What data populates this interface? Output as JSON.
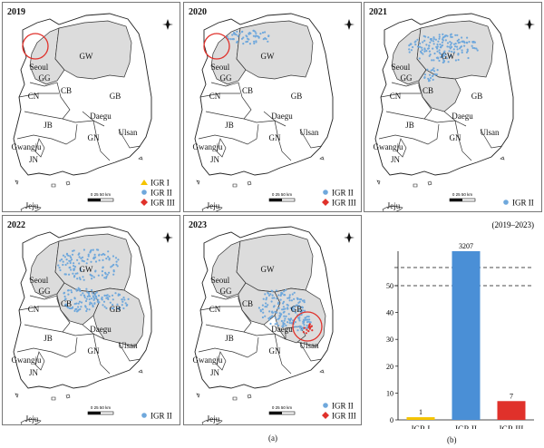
{
  "figure_label_a": "(a)",
  "figure_label_b": "(b)",
  "province_labels": [
    "Seoul",
    "GG",
    "GW",
    "CN",
    "CB",
    "GB",
    "JB",
    "Daegu",
    "Ulsan",
    "GN",
    "Gwangju",
    "JN",
    "Jeju"
  ],
  "scale_label": "0 25 50 km",
  "legend_labels": {
    "igr1": "IGR I",
    "igr2": "IGR II",
    "igr3": "IGR III"
  },
  "legend_colors": {
    "igr1": "#f5c400",
    "igr2": "#6fa8dc",
    "igr3": "#e0312b",
    "shaded": "#dcdcdc"
  },
  "maps": [
    {
      "year": "2019",
      "legend": [
        "igr1",
        "igr2",
        "igr3"
      ],
      "highlighted_provinces": [
        "GG",
        "GW"
      ]
    },
    {
      "year": "2020",
      "legend": [
        "igr2",
        "igr3"
      ],
      "highlighted_provinces": [
        "GG",
        "GW"
      ]
    },
    {
      "year": "2021",
      "legend": [
        "igr2"
      ],
      "highlighted_provinces": [
        "GG",
        "GW",
        "CB"
      ]
    },
    {
      "year": "2022",
      "legend": [
        "igr2"
      ],
      "highlighted_provinces": [
        "GG",
        "GW",
        "CB",
        "GB"
      ]
    },
    {
      "year": "2023",
      "legend": [
        "igr2",
        "igr3"
      ],
      "highlighted_provinces": [
        "GG",
        "GW",
        "CB",
        "GB",
        "Daegu"
      ]
    }
  ],
  "chart_data": {
    "type": "bar",
    "title": "(2019–2023)",
    "categories": [
      "IGR I",
      "IGR II",
      "IGR III"
    ],
    "values": [
      1,
      3207,
      7
    ],
    "colors": [
      "#f5c400",
      "#4a8fd6",
      "#e0312b"
    ],
    "ylim": [
      0,
      50
    ],
    "yticks": [
      0,
      10,
      20,
      30,
      40,
      50
    ],
    "axis_break": true,
    "grid": false
  }
}
